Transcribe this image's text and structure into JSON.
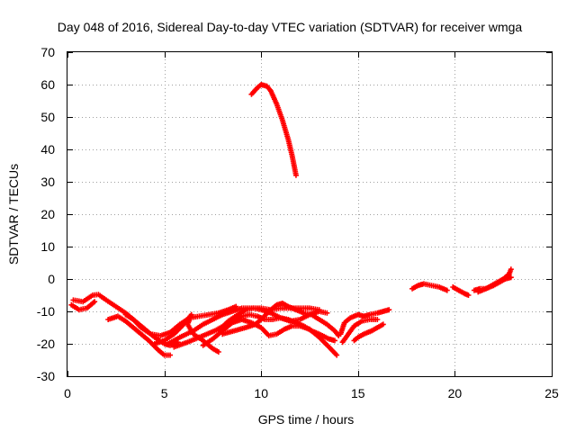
{
  "chart_data": {
    "type": "scatter",
    "title": "Day 048 of 2016, Sidereal Day-to-day VTEC variation (SDTVAR) for receiver wmga",
    "xlabel": "GPS time / hours",
    "ylabel": "SDTVAR / TECUs",
    "xlim": [
      0,
      25
    ],
    "ylim": [
      -30,
      70
    ],
    "xticks": [
      0,
      5,
      10,
      15,
      20,
      25
    ],
    "yticks": [
      -30,
      -20,
      -10,
      0,
      10,
      20,
      30,
      40,
      50,
      60,
      70
    ],
    "grid": true,
    "marker": "+",
    "color": "#ff0000",
    "series": [
      {
        "name": "arc-1",
        "points": [
          [
            0.3,
            -6.5
          ],
          [
            0.8,
            -7
          ],
          [
            1.3,
            -5
          ],
          [
            1.6,
            -4.8
          ],
          [
            2.0,
            -6.5
          ],
          [
            2.5,
            -8.5
          ],
          [
            3.0,
            -10.5
          ],
          [
            3.5,
            -13
          ],
          [
            4.0,
            -15.5
          ],
          [
            4.5,
            -18
          ],
          [
            5.0,
            -20
          ],
          [
            5.3,
            -20.5
          ],
          [
            5.7,
            -19.5
          ]
        ]
      },
      {
        "name": "arc-2",
        "points": [
          [
            0.2,
            -8
          ],
          [
            0.6,
            -9.5
          ],
          [
            1.0,
            -9
          ],
          [
            1.4,
            -7
          ]
        ]
      },
      {
        "name": "arc-3",
        "points": [
          [
            2.1,
            -12.5
          ],
          [
            2.6,
            -11.5
          ],
          [
            3.0,
            -13
          ],
          [
            3.4,
            -15
          ],
          [
            3.8,
            -17
          ],
          [
            4.2,
            -19
          ],
          [
            4.7,
            -22
          ],
          [
            5.0,
            -23.5
          ],
          [
            5.3,
            -23.5
          ]
        ]
      },
      {
        "name": "arc-4",
        "points": [
          [
            3.0,
            -11
          ],
          [
            3.4,
            -12.5
          ],
          [
            3.8,
            -15
          ],
          [
            4.3,
            -17
          ],
          [
            4.8,
            -17.5
          ],
          [
            5.3,
            -16.5
          ],
          [
            5.8,
            -14
          ],
          [
            6.3,
            -12
          ],
          [
            6.8,
            -11.5
          ],
          [
            7.3,
            -11
          ],
          [
            7.8,
            -10.5
          ],
          [
            8.3,
            -9.5
          ],
          [
            8.7,
            -8.5
          ]
        ]
      },
      {
        "name": "arc-5",
        "points": [
          [
            4.5,
            -20
          ],
          [
            5.0,
            -19
          ],
          [
            5.5,
            -17
          ],
          [
            6.0,
            -14
          ],
          [
            6.4,
            -11
          ],
          [
            6.2,
            -14
          ],
          [
            6.5,
            -17
          ],
          [
            7.0,
            -19
          ],
          [
            7.5,
            -21.5
          ],
          [
            7.8,
            -22.5
          ]
        ]
      },
      {
        "name": "arc-6",
        "points": [
          [
            5.2,
            -20
          ],
          [
            5.8,
            -18
          ],
          [
            6.5,
            -16
          ],
          [
            7.0,
            -14
          ],
          [
            7.5,
            -12.5
          ],
          [
            8.0,
            -11
          ],
          [
            8.5,
            -10
          ],
          [
            9.0,
            -9
          ],
          [
            9.5,
            -9
          ],
          [
            10.0,
            -9
          ],
          [
            10.5,
            -9.5
          ],
          [
            11.0,
            -9
          ],
          [
            11.5,
            -9
          ],
          [
            12.0,
            -9
          ],
          [
            12.5,
            -9
          ],
          [
            13.0,
            -9.5
          ]
        ]
      },
      {
        "name": "arc-7",
        "points": [
          [
            5.5,
            -21
          ],
          [
            6.2,
            -19.5
          ],
          [
            7.0,
            -17.5
          ],
          [
            7.6,
            -16
          ],
          [
            8.2,
            -14
          ],
          [
            8.6,
            -13
          ],
          [
            9.0,
            -11.5
          ],
          [
            9.4,
            -11
          ],
          [
            9.8,
            -11.5
          ],
          [
            10.2,
            -12.5
          ],
          [
            10.6,
            -12.5
          ],
          [
            11.0,
            -12
          ],
          [
            11.4,
            -12.5
          ],
          [
            11.8,
            -13.5
          ],
          [
            12.2,
            -14.5
          ],
          [
            12.6,
            -16
          ],
          [
            13.0,
            -17
          ],
          [
            13.5,
            -18.5
          ],
          [
            13.8,
            -19
          ]
        ]
      },
      {
        "name": "arc-8",
        "points": [
          [
            7.0,
            -20.5
          ],
          [
            7.5,
            -18.5
          ],
          [
            8.0,
            -16
          ],
          [
            8.5,
            -13.5
          ],
          [
            9.0,
            -12.5
          ],
          [
            9.5,
            -13.5
          ],
          [
            10.0,
            -15
          ],
          [
            10.4,
            -17.5
          ],
          [
            10.8,
            -17
          ],
          [
            11.2,
            -15.5
          ],
          [
            11.6,
            -14.5
          ],
          [
            12.0,
            -14.5
          ],
          [
            12.5,
            -15.5
          ],
          [
            13.0,
            -18
          ],
          [
            13.5,
            -21
          ],
          [
            13.9,
            -23.5
          ]
        ]
      },
      {
        "name": "arc-9",
        "points": [
          [
            7.8,
            -16
          ],
          [
            8.3,
            -13
          ],
          [
            8.8,
            -11
          ],
          [
            9.2,
            -9.5
          ],
          [
            9.6,
            -9
          ],
          [
            10.0,
            -9.5
          ],
          [
            10.5,
            -10.5
          ],
          [
            11.0,
            -12
          ],
          [
            11.5,
            -13
          ],
          [
            12.0,
            -12.5
          ],
          [
            12.5,
            -11
          ],
          [
            13.0,
            -10
          ],
          [
            13.4,
            -10.5
          ]
        ]
      },
      {
        "name": "arc-10",
        "points": [
          [
            8.0,
            -17
          ],
          [
            8.6,
            -16
          ],
          [
            9.2,
            -15
          ],
          [
            9.7,
            -14
          ],
          [
            10.0,
            -12.5
          ],
          [
            10.4,
            -10
          ],
          [
            10.8,
            -8
          ],
          [
            11.1,
            -7.5
          ],
          [
            11.4,
            -8.5
          ],
          [
            11.8,
            -9.5
          ],
          [
            12.2,
            -10.5
          ],
          [
            12.6,
            -11
          ],
          [
            13.0,
            -12.5
          ],
          [
            13.4,
            -14
          ],
          [
            13.8,
            -16
          ],
          [
            14.0,
            -17.5
          ]
        ]
      },
      {
        "name": "arc-11",
        "points": [
          [
            9.5,
            57
          ],
          [
            9.8,
            59
          ],
          [
            10.0,
            60
          ],
          [
            10.3,
            59.5
          ],
          [
            10.5,
            58
          ],
          [
            10.8,
            54
          ],
          [
            11.1,
            49
          ],
          [
            11.4,
            43
          ],
          [
            11.6,
            38
          ],
          [
            11.8,
            32
          ]
        ]
      },
      {
        "name": "arc-12",
        "points": [
          [
            14.8,
            -19
          ],
          [
            15.0,
            -18
          ],
          [
            15.3,
            -17
          ],
          [
            15.7,
            -16
          ],
          [
            16.0,
            -15
          ],
          [
            16.3,
            -14
          ]
        ]
      },
      {
        "name": "arc-13",
        "points": [
          [
            14.1,
            -17
          ],
          [
            14.3,
            -13.5
          ],
          [
            14.6,
            -12
          ],
          [
            15.0,
            -11
          ],
          [
            15.3,
            -11.5
          ],
          [
            15.6,
            -11
          ],
          [
            16.0,
            -10.5
          ],
          [
            16.3,
            -10
          ],
          [
            16.6,
            -9.5
          ]
        ]
      },
      {
        "name": "arc-14",
        "points": [
          [
            14.2,
            -19.5
          ],
          [
            14.5,
            -17
          ],
          [
            14.8,
            -14.5
          ],
          [
            15.2,
            -13
          ],
          [
            15.6,
            -12.5
          ],
          [
            16.0,
            -12.5
          ]
        ]
      },
      {
        "name": "arc-15",
        "points": [
          [
            17.8,
            -3
          ],
          [
            18.1,
            -2
          ],
          [
            18.4,
            -1.5
          ],
          [
            18.8,
            -2
          ],
          [
            19.2,
            -2.5
          ],
          [
            19.6,
            -3.5
          ]
        ]
      },
      {
        "name": "arc-16",
        "points": [
          [
            19.9,
            -2.5
          ],
          [
            20.2,
            -3.5
          ],
          [
            20.5,
            -4.5
          ],
          [
            20.7,
            -5
          ]
        ]
      },
      {
        "name": "arc-17",
        "points": [
          [
            21.0,
            -3.5
          ],
          [
            21.3,
            -3
          ],
          [
            21.6,
            -3
          ],
          [
            21.9,
            -2
          ],
          [
            22.2,
            -1
          ],
          [
            22.5,
            0
          ],
          [
            22.8,
            1.5
          ],
          [
            22.9,
            3
          ]
        ]
      },
      {
        "name": "arc-18",
        "points": [
          [
            21.2,
            -4
          ],
          [
            21.6,
            -3
          ],
          [
            22.0,
            -2
          ],
          [
            22.3,
            -1
          ],
          [
            22.6,
            0
          ],
          [
            22.9,
            0.5
          ]
        ]
      }
    ]
  }
}
